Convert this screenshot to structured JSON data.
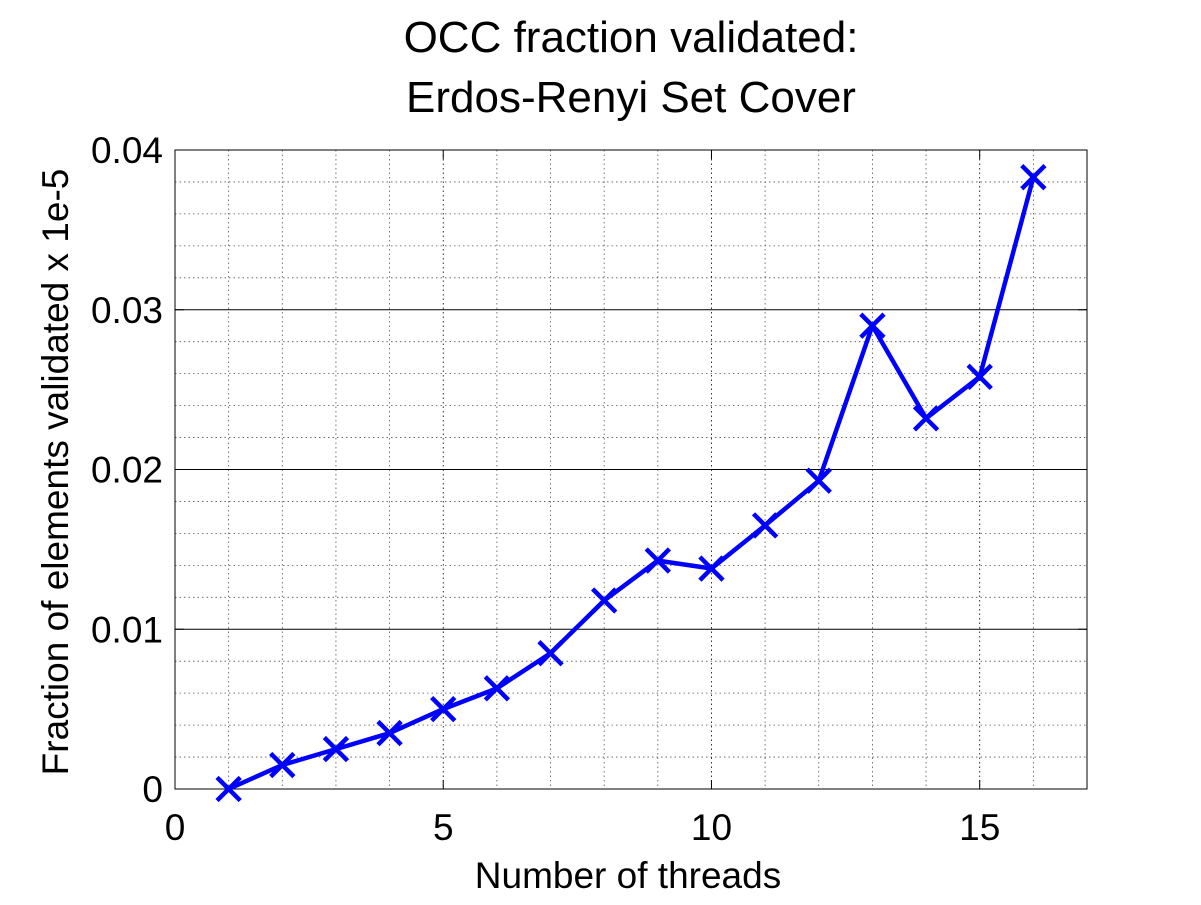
{
  "chart_data": {
    "type": "line",
    "title_lines": [
      "OCC fraction validated:",
      "Erdos-Renyi Set Cover"
    ],
    "xlabel": "Number of threads",
    "ylabel": "Fraction of elements validated x 1e-5",
    "xlim": [
      0,
      17
    ],
    "ylim": [
      0,
      0.04
    ],
    "x_ticks": [
      0,
      5,
      10,
      15
    ],
    "x_tick_labels": [
      "0",
      "5",
      "10",
      "15"
    ],
    "y_ticks": [
      0,
      0.01,
      0.02,
      0.03,
      0.04
    ],
    "y_tick_labels": [
      "0",
      "0.01",
      "0.02",
      "0.03",
      "0.04"
    ],
    "grid": "major and minor (dotted)",
    "series": [
      {
        "color": "#0000ff",
        "marker": "x",
        "x": [
          1,
          2,
          3,
          4,
          5,
          6,
          7,
          8,
          9,
          10,
          11,
          12,
          13,
          14,
          15,
          16
        ],
        "values": [
          0.0,
          0.0015,
          0.0025,
          0.0035,
          0.005,
          0.0063,
          0.0085,
          0.0118,
          0.0143,
          0.0138,
          0.0165,
          0.0193,
          0.029,
          0.0232,
          0.0258,
          0.0383
        ]
      }
    ]
  }
}
